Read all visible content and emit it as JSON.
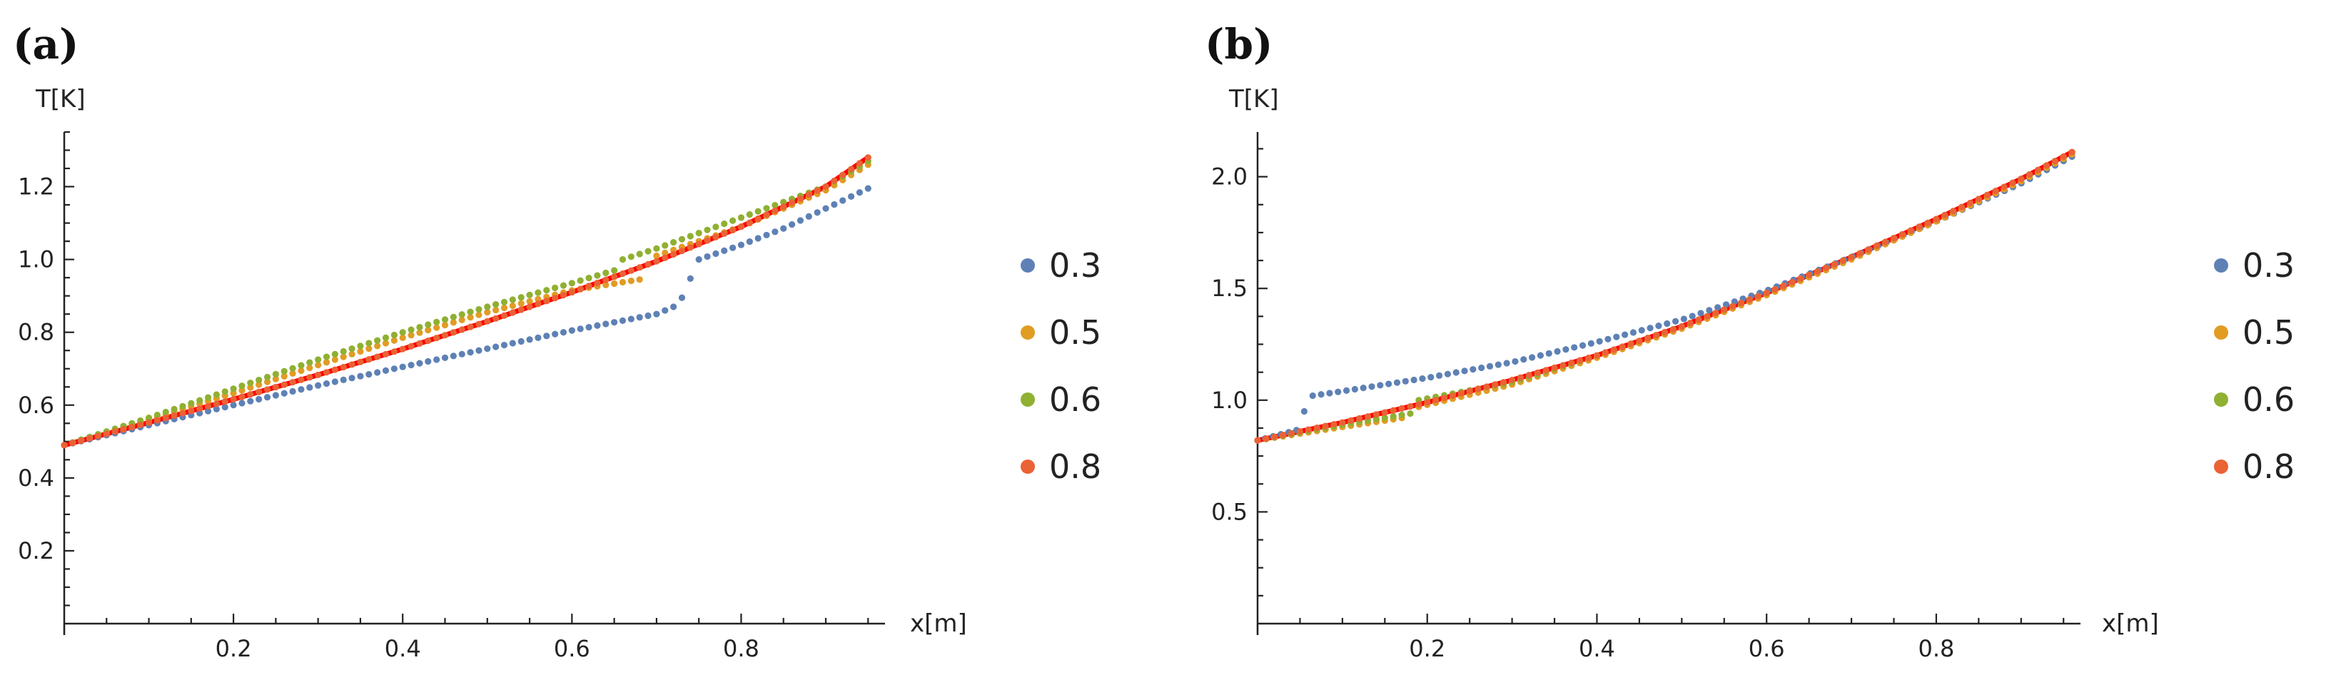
{
  "chart_data": [
    {
      "type": "scatter",
      "panel": "(a)",
      "xlabel": "x[m]",
      "ylabel": "T[K]",
      "xlim": [
        0,
        0.97
      ],
      "ylim": [
        0,
        1.35
      ],
      "xticks": [
        0.2,
        0.4,
        0.6,
        0.8
      ],
      "xtick_labels": [
        "0.2",
        "0.4",
        "0.6",
        "0.8"
      ],
      "yticks": [
        0.2,
        0.4,
        0.6,
        0.8,
        1.0,
        1.2
      ],
      "ytick_labels": [
        "0.2",
        "0.4",
        "0.6",
        "0.8",
        "1.0",
        "1.2"
      ],
      "reference_line": {
        "color": "#ff0000",
        "x": [
          0,
          0.1,
          0.2,
          0.3,
          0.4,
          0.5,
          0.6,
          0.7,
          0.8,
          0.9,
          0.95
        ],
        "y": [
          0.49,
          0.552,
          0.616,
          0.683,
          0.754,
          0.83,
          0.91,
          0.995,
          1.09,
          1.2,
          1.28
        ]
      },
      "series": [
        {
          "name": "0.3",
          "color": "#5e81b5",
          "segments": [
            {
              "x": [
                0,
                0.1,
                0.2,
                0.3,
                0.4,
                0.5,
                0.6,
                0.7,
                0.72
              ],
              "y": [
                0.49,
                0.545,
                0.6,
                0.654,
                0.705,
                0.755,
                0.805,
                0.85,
                0.87
              ]
            },
            {
              "x": [
                0.73,
                0.75,
                0.8,
                0.85,
                0.9,
                0.95
              ],
              "y": [
                0.895,
                1.0,
                1.04,
                1.085,
                1.14,
                1.195
              ]
            }
          ]
        },
        {
          "name": "0.5",
          "color": "#e19c24",
          "segments": [
            {
              "x": [
                0,
                0.1,
                0.2,
                0.3,
                0.4,
                0.5,
                0.6,
                0.68
              ],
              "y": [
                0.49,
                0.56,
                0.633,
                0.71,
                0.785,
                0.855,
                0.915,
                0.945
              ]
            },
            {
              "x": [
                0.7,
                0.8,
                0.9,
                0.95
              ],
              "y": [
                1.01,
                1.09,
                1.19,
                1.26
              ]
            }
          ]
        },
        {
          "name": "0.6",
          "color": "#8fb032",
          "segments": [
            {
              "x": [
                0,
                0.1,
                0.2,
                0.3,
                0.4,
                0.5,
                0.6,
                0.65
              ],
              "y": [
                0.49,
                0.565,
                0.645,
                0.725,
                0.8,
                0.87,
                0.935,
                0.97
              ]
            },
            {
              "x": [
                0.66,
                0.7,
                0.8,
                0.9,
                0.95
              ],
              "y": [
                1.0,
                1.03,
                1.115,
                1.2,
                1.27
              ]
            }
          ]
        },
        {
          "name": "0.8",
          "color": "#eb6235",
          "segments": [
            {
              "x": [
                0,
                0.1,
                0.2,
                0.3,
                0.4,
                0.5,
                0.6,
                0.7,
                0.8,
                0.9,
                0.95
              ],
              "y": [
                0.49,
                0.552,
                0.616,
                0.683,
                0.754,
                0.83,
                0.91,
                0.995,
                1.09,
                1.2,
                1.28
              ]
            }
          ]
        }
      ],
      "legend": [
        "0.3",
        "0.5",
        "0.6",
        "0.8"
      ]
    },
    {
      "type": "scatter",
      "panel": "(b)",
      "xlabel": "x[m]",
      "ylabel": "T[K]",
      "xlim": [
        0,
        0.97
      ],
      "ylim": [
        0,
        2.2
      ],
      "xticks": [
        0.2,
        0.4,
        0.6,
        0.8
      ],
      "xtick_labels": [
        "0.2",
        "0.4",
        "0.6",
        "0.8"
      ],
      "yticks": [
        0.5,
        1.0,
        1.5,
        2.0
      ],
      "ytick_labels": [
        "0.5",
        "1.0",
        "1.5",
        "2.0"
      ],
      "reference_line": {
        "color": "#ff0000",
        "x": [
          0,
          0.1,
          0.2,
          0.3,
          0.4,
          0.5,
          0.6,
          0.7,
          0.8,
          0.9,
          0.96
        ],
        "y": [
          0.82,
          0.9,
          0.99,
          1.09,
          1.2,
          1.33,
          1.48,
          1.64,
          1.81,
          1.99,
          2.11
        ]
      },
      "series": [
        {
          "name": "0.3",
          "color": "#5e81b5",
          "segments": [
            {
              "x": [
                0.0,
                0.05,
                0.055
              ],
              "y": [
                0.82,
                0.87,
                0.95
              ]
            },
            {
              "x": [
                0.065,
                0.1,
                0.2,
                0.3,
                0.4,
                0.5,
                0.6,
                0.7,
                0.8,
                0.9,
                0.96
              ],
              "y": [
                1.02,
                1.04,
                1.1,
                1.17,
                1.26,
                1.36,
                1.49,
                1.64,
                1.8,
                1.97,
                2.09
              ]
            }
          ]
        },
        {
          "name": "0.5",
          "color": "#e19c24",
          "segments": [
            {
              "x": [
                0,
                0.1,
                0.17
              ],
              "y": [
                0.82,
                0.88,
                0.92
              ]
            },
            {
              "x": [
                0.19,
                0.3,
                0.4,
                0.5,
                0.6,
                0.7,
                0.8,
                0.9,
                0.96
              ],
              "y": [
                0.97,
                1.07,
                1.19,
                1.32,
                1.47,
                1.63,
                1.8,
                1.98,
                2.1
              ]
            }
          ]
        },
        {
          "name": "0.6",
          "color": "#8fb032",
          "segments": [
            {
              "x": [
                0,
                0.1,
                0.18
              ],
              "y": [
                0.82,
                0.89,
                0.94
              ]
            },
            {
              "x": [
                0.19,
                0.3,
                0.4,
                0.5,
                0.6,
                0.7,
                0.8,
                0.9,
                0.96
              ],
              "y": [
                1.0,
                1.08,
                1.2,
                1.33,
                1.48,
                1.64,
                1.81,
                1.99,
                2.11
              ]
            }
          ]
        },
        {
          "name": "0.8",
          "color": "#eb6235",
          "segments": [
            {
              "x": [
                0,
                0.1,
                0.2,
                0.3,
                0.4,
                0.5,
                0.6,
                0.7,
                0.8,
                0.9,
                0.96
              ],
              "y": [
                0.82,
                0.9,
                0.99,
                1.09,
                1.2,
                1.33,
                1.48,
                1.64,
                1.81,
                1.99,
                2.11
              ]
            }
          ]
        }
      ],
      "legend": [
        "0.3",
        "0.5",
        "0.6",
        "0.8"
      ]
    }
  ]
}
